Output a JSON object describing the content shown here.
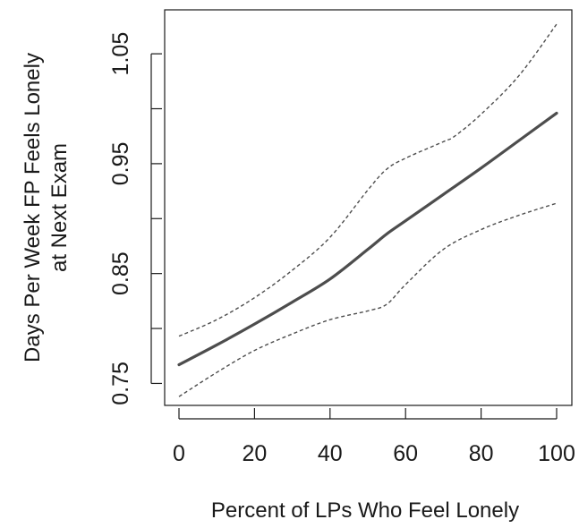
{
  "chart_data": {
    "type": "line",
    "title": "",
    "xlabel": "Percent of LPs Who Feel Lonely",
    "ylabel_lines": [
      "Days Per Week FP Feels Lonely",
      "at Next Exam"
    ],
    "xlim": [
      0,
      100
    ],
    "ylim": [
      0.73,
      1.09
    ],
    "x_ticks": [
      0,
      20,
      40,
      60,
      80,
      100
    ],
    "x_tick_labels": [
      "0",
      "20",
      "40",
      "60",
      "80",
      "100"
    ],
    "y_ticks": [
      0.75,
      0.85,
      0.95,
      1.05
    ],
    "y_tick_labels": [
      "0.75",
      "0.85",
      "0.95",
      "1.05"
    ],
    "y_minor_ticks": [
      0.8,
      0.9,
      1.0
    ],
    "grid": false,
    "legend": "none",
    "series": [
      {
        "role": "estimate",
        "style": "solid",
        "color": "#4d4d4d",
        "x": [
          0,
          10,
          20,
          30,
          40,
          50,
          55,
          60,
          70,
          80,
          90,
          100
        ],
        "y": [
          0.767,
          0.785,
          0.804,
          0.824,
          0.845,
          0.872,
          0.886,
          0.898,
          0.922,
          0.946,
          0.971,
          0.996
        ]
      },
      {
        "role": "upper",
        "style": "dashed",
        "color": "#4d4d4d",
        "x": [
          0,
          10,
          20,
          30,
          40,
          50,
          55,
          60,
          70,
          73,
          80,
          90,
          100
        ],
        "y": [
          0.793,
          0.808,
          0.828,
          0.853,
          0.883,
          0.926,
          0.945,
          0.955,
          0.97,
          0.975,
          0.995,
          1.03,
          1.077
        ]
      },
      {
        "role": "lower",
        "style": "dashed",
        "color": "#4d4d4d",
        "x": [
          0,
          10,
          20,
          30,
          40,
          50,
          55,
          60,
          70,
          80,
          90,
          100
        ],
        "y": [
          0.738,
          0.76,
          0.78,
          0.795,
          0.808,
          0.816,
          0.822,
          0.84,
          0.872,
          0.89,
          0.903,
          0.914
        ]
      }
    ]
  }
}
